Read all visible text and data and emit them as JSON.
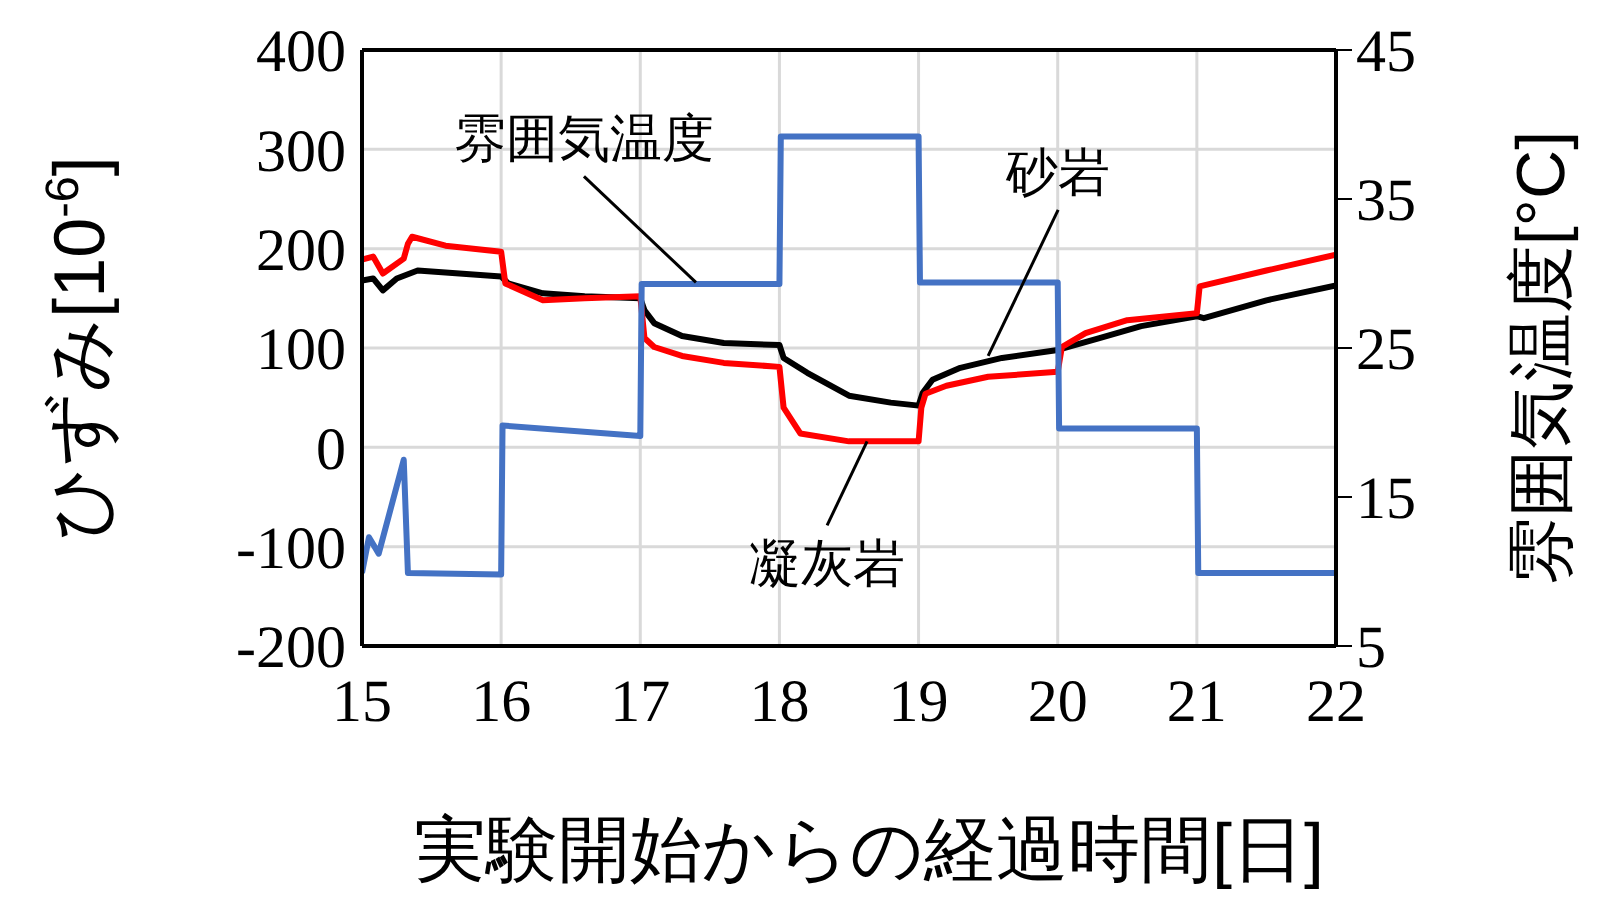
{
  "chart_data": {
    "type": "line",
    "xlabel": "実験開始からの経過時間[日]",
    "ylabel": "ひずみ[10$^{-6}$]",
    "y2label": "雰囲気温度[°C]",
    "xlim": [
      15,
      22
    ],
    "xticks": [
      15,
      16,
      17,
      18,
      19,
      20,
      21,
      22
    ],
    "ylim": [
      -200,
      400
    ],
    "yticks": [
      -200,
      -100,
      0,
      100,
      200,
      300,
      400
    ],
    "y2lim": [
      5,
      45
    ],
    "y2ticks": [
      5,
      15,
      25,
      35,
      45
    ],
    "grid": true,
    "marker": "none",
    "line_style": "solid",
    "series": [
      {
        "color": "#000000",
        "x": [
          15,
          15.08,
          15.15,
          15.25,
          15.4,
          15.7,
          16,
          16.05,
          16.3,
          16.6,
          17,
          17.03,
          17.1,
          17.3,
          17.6,
          18,
          18.03,
          18.2,
          18.5,
          18.8,
          19,
          19.03,
          19.1,
          19.3,
          19.6,
          20,
          20.3,
          20.6,
          21,
          21.05,
          21.5,
          22
        ],
        "values": [
          168,
          170,
          158,
          170,
          178,
          175,
          172,
          165,
          155,
          152,
          150,
          138,
          125,
          112,
          105,
          103,
          90,
          75,
          52,
          45,
          42,
          55,
          68,
          80,
          90,
          98,
          110,
          122,
          132,
          130,
          148,
          163
        ]
      },
      {
        "color": "#ff0000",
        "x": [
          15,
          15.08,
          15.15,
          15.3,
          15.33,
          15.36,
          15.6,
          16,
          16.03,
          16.3,
          16.6,
          17,
          17.03,
          17.1,
          17.3,
          17.6,
          18,
          18.03,
          18.15,
          18.5,
          19,
          19.02,
          19.05,
          19.2,
          19.5,
          20,
          20.03,
          20.2,
          20.5,
          21,
          21.02,
          21.5,
          22
        ],
        "values": [
          189,
          192,
          175,
          190,
          205,
          212,
          203,
          197,
          165,
          148,
          150,
          152,
          110,
          101,
          92,
          85,
          81,
          40,
          14,
          6,
          6,
          40,
          54,
          62,
          71,
          76,
          101,
          115,
          128,
          135,
          162,
          178,
          194
        ]
      },
      {
        "color": "#4472c4",
        "axis": "y2",
        "x": [
          15,
          15.05,
          15.12,
          15.3,
          15.33,
          16,
          16.01,
          17,
          17.01,
          18,
          18.01,
          19,
          19.01,
          20,
          20.01,
          21,
          21.01,
          22
        ],
        "values": [
          9.9,
          12.3,
          11.2,
          17.5,
          9.9,
          9.8,
          19.8,
          19.1,
          29.3,
          29.3,
          39.2,
          39.2,
          29.4,
          29.4,
          19.6,
          19.6,
          9.9,
          9.9
        ]
      }
    ],
    "annotations": [
      {
        "text": "雰囲気温度",
        "x": 17.4,
        "y": 166
      },
      {
        "text": "砂岩",
        "x": 19.5,
        "y": 92
      },
      {
        "text": "凝灰岩",
        "x": 18.63,
        "y": 6
      }
    ]
  }
}
